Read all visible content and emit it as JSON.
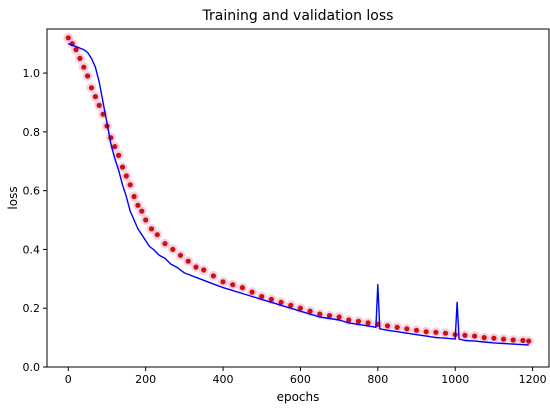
{
  "chart_data": {
    "type": "line",
    "title": "Training and validation loss",
    "xlabel": "epochs",
    "ylabel": "loss",
    "xlim": [
      -55,
      1245
    ],
    "ylim": [
      0.0,
      1.15
    ],
    "x_ticks": [
      0,
      200,
      400,
      600,
      800,
      1000,
      1200
    ],
    "x_tick_labels": [
      "0",
      "200",
      "400",
      "600",
      "800",
      "1000",
      "1200"
    ],
    "y_ticks": [
      0.0,
      0.2,
      0.4,
      0.6,
      0.8,
      1.0
    ],
    "y_tick_labels": [
      "0.0",
      "0.2",
      "0.4",
      "0.6",
      "0.8",
      "1.0"
    ],
    "grid": false,
    "legend": null,
    "series": [
      {
        "style": "markers",
        "color": "#cc1111",
        "halo_color": "#f4c6dc",
        "points": [
          [
            0,
            1.12
          ],
          [
            10,
            1.1
          ],
          [
            20,
            1.08
          ],
          [
            30,
            1.05
          ],
          [
            40,
            1.02
          ],
          [
            50,
            0.99
          ],
          [
            60,
            0.95
          ],
          [
            70,
            0.92
          ],
          [
            80,
            0.89
          ],
          [
            90,
            0.86
          ],
          [
            100,
            0.82
          ],
          [
            110,
            0.78
          ],
          [
            120,
            0.75
          ],
          [
            130,
            0.72
          ],
          [
            140,
            0.68
          ],
          [
            150,
            0.65
          ],
          [
            160,
            0.62
          ],
          [
            170,
            0.58
          ],
          [
            180,
            0.55
          ],
          [
            190,
            0.53
          ],
          [
            200,
            0.5
          ],
          [
            215,
            0.47
          ],
          [
            230,
            0.45
          ],
          [
            250,
            0.42
          ],
          [
            270,
            0.4
          ],
          [
            290,
            0.38
          ],
          [
            310,
            0.36
          ],
          [
            330,
            0.34
          ],
          [
            350,
            0.33
          ],
          [
            375,
            0.31
          ],
          [
            400,
            0.29
          ],
          [
            425,
            0.28
          ],
          [
            450,
            0.27
          ],
          [
            475,
            0.255
          ],
          [
            500,
            0.24
          ],
          [
            525,
            0.23
          ],
          [
            550,
            0.22
          ],
          [
            575,
            0.21
          ],
          [
            600,
            0.2
          ],
          [
            625,
            0.19
          ],
          [
            650,
            0.18
          ],
          [
            675,
            0.175
          ],
          [
            700,
            0.17
          ],
          [
            725,
            0.16
          ],
          [
            750,
            0.155
          ],
          [
            775,
            0.15
          ],
          [
            800,
            0.145
          ],
          [
            825,
            0.14
          ],
          [
            850,
            0.135
          ],
          [
            875,
            0.13
          ],
          [
            900,
            0.125
          ],
          [
            925,
            0.12
          ],
          [
            950,
            0.118
          ],
          [
            975,
            0.115
          ],
          [
            1000,
            0.11
          ],
          [
            1025,
            0.108
          ],
          [
            1050,
            0.105
          ],
          [
            1075,
            0.1
          ],
          [
            1100,
            0.098
          ],
          [
            1125,
            0.095
          ],
          [
            1150,
            0.092
          ],
          [
            1175,
            0.09
          ],
          [
            1190,
            0.088
          ]
        ]
      },
      {
        "style": "line",
        "color": "#0000ff",
        "points": [
          [
            0,
            1.1
          ],
          [
            10,
            1.095
          ],
          [
            20,
            1.09
          ],
          [
            30,
            1.085
          ],
          [
            40,
            1.08
          ],
          [
            50,
            1.07
          ],
          [
            60,
            1.05
          ],
          [
            70,
            1.02
          ],
          [
            80,
            0.97
          ],
          [
            90,
            0.9
          ],
          [
            100,
            0.83
          ],
          [
            110,
            0.76
          ],
          [
            120,
            0.71
          ],
          [
            130,
            0.67
          ],
          [
            140,
            0.62
          ],
          [
            150,
            0.58
          ],
          [
            160,
            0.53
          ],
          [
            170,
            0.5
          ],
          [
            180,
            0.47
          ],
          [
            190,
            0.45
          ],
          [
            200,
            0.43
          ],
          [
            210,
            0.41
          ],
          [
            220,
            0.4
          ],
          [
            235,
            0.38
          ],
          [
            250,
            0.37
          ],
          [
            265,
            0.35
          ],
          [
            280,
            0.34
          ],
          [
            300,
            0.32
          ],
          [
            320,
            0.31
          ],
          [
            340,
            0.3
          ],
          [
            360,
            0.29
          ],
          [
            380,
            0.28
          ],
          [
            400,
            0.27
          ],
          [
            425,
            0.26
          ],
          [
            450,
            0.25
          ],
          [
            475,
            0.24
          ],
          [
            500,
            0.23
          ],
          [
            525,
            0.22
          ],
          [
            550,
            0.21
          ],
          [
            575,
            0.2
          ],
          [
            600,
            0.19
          ],
          [
            625,
            0.18
          ],
          [
            650,
            0.17
          ],
          [
            675,
            0.165
          ],
          [
            700,
            0.16
          ],
          [
            725,
            0.15
          ],
          [
            750,
            0.145
          ],
          [
            775,
            0.14
          ],
          [
            795,
            0.135
          ],
          [
            800,
            0.28
          ],
          [
            805,
            0.13
          ],
          [
            825,
            0.125
          ],
          [
            850,
            0.12
          ],
          [
            875,
            0.115
          ],
          [
            900,
            0.11
          ],
          [
            925,
            0.105
          ],
          [
            950,
            0.1
          ],
          [
            975,
            0.098
          ],
          [
            1000,
            0.095
          ],
          [
            1005,
            0.22
          ],
          [
            1010,
            0.095
          ],
          [
            1025,
            0.09
          ],
          [
            1050,
            0.088
          ],
          [
            1075,
            0.085
          ],
          [
            1100,
            0.082
          ],
          [
            1125,
            0.08
          ],
          [
            1150,
            0.078
          ],
          [
            1175,
            0.076
          ],
          [
            1190,
            0.075
          ]
        ]
      }
    ]
  }
}
